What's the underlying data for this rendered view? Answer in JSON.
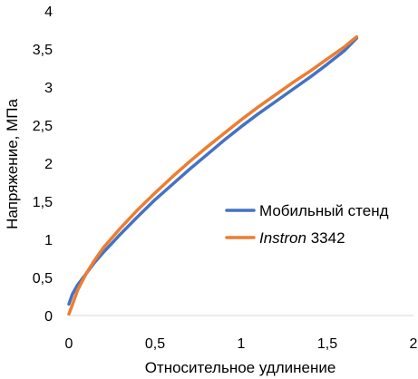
{
  "chart_data": {
    "type": "line",
    "xlabel": "Относительное удлинение",
    "ylabel": "Напряжение, МПа",
    "xlim": [
      0,
      2
    ],
    "ylim": [
      0,
      4
    ],
    "x_ticks": [
      "0",
      "0,5",
      "1",
      "1,5",
      "2"
    ],
    "y_ticks": [
      "0",
      "0,5",
      "1",
      "1,5",
      "2",
      "2,5",
      "3",
      "3,5",
      "4"
    ],
    "grid": false,
    "legend_position": "right",
    "series": [
      {
        "name": "Мобильный стенд",
        "name_italic": "",
        "name_rest": "Мобильный стенд",
        "color": "#4472C4",
        "x": [
          0.0,
          0.02,
          0.05,
          0.1,
          0.15,
          0.2,
          0.3,
          0.4,
          0.5,
          0.6,
          0.7,
          0.8,
          0.9,
          1.0,
          1.1,
          1.2,
          1.3,
          1.4,
          1.5,
          1.6,
          1.67
        ],
        "y": [
          0.15,
          0.28,
          0.4,
          0.55,
          0.7,
          0.83,
          1.07,
          1.3,
          1.52,
          1.72,
          1.92,
          2.11,
          2.3,
          2.48,
          2.65,
          2.81,
          2.97,
          3.13,
          3.3,
          3.48,
          3.64
        ]
      },
      {
        "name": "Instron 3342",
        "name_italic": "Instron",
        "name_rest": " 3342",
        "color": "#ED7D31",
        "x": [
          0.0,
          0.02,
          0.05,
          0.1,
          0.15,
          0.2,
          0.3,
          0.4,
          0.5,
          0.6,
          0.7,
          0.8,
          0.9,
          1.0,
          1.1,
          1.2,
          1.3,
          1.4,
          1.5,
          1.6,
          1.67
        ],
        "y": [
          0.02,
          0.14,
          0.33,
          0.55,
          0.73,
          0.89,
          1.15,
          1.39,
          1.61,
          1.82,
          2.02,
          2.21,
          2.39,
          2.57,
          2.74,
          2.9,
          3.06,
          3.21,
          3.37,
          3.53,
          3.66
        ]
      }
    ]
  }
}
